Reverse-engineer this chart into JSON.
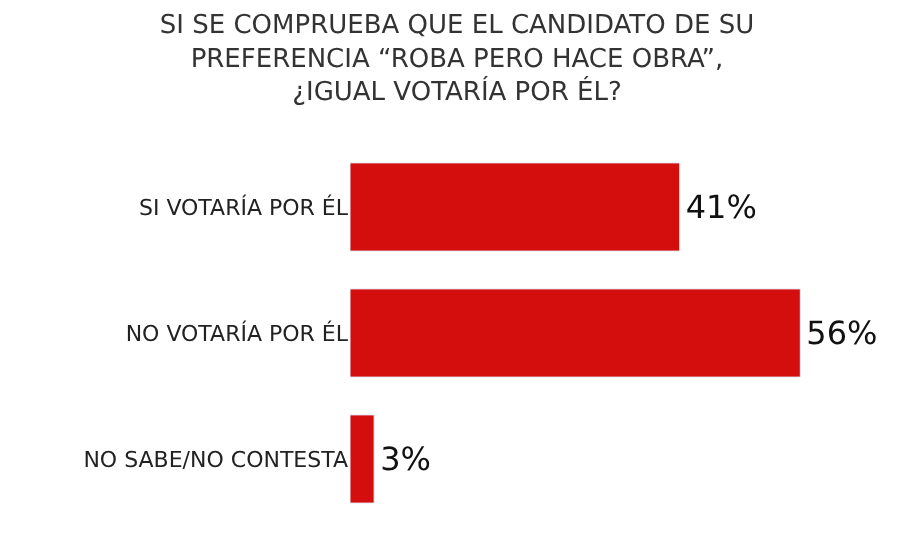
{
  "chart_data": {
    "type": "bar",
    "orientation": "horizontal",
    "title": "SI SE COMPRUEBA QUE EL CANDIDATO DE SU PREFERENCIA “ROBA PERO HACE OBRA”, ¿IGUAL VOTARÍA POR ÉL?",
    "categories": [
      "SI VOTARÍA POR ÉL",
      "NO VOTARÍA POR ÉL",
      "NO SABE/NO CONTESTA"
    ],
    "values": [
      41,
      56,
      3
    ],
    "value_labels": [
      "41%",
      "56%",
      "3%"
    ],
    "color": "#d40d0d",
    "tick_labels": "y"
  }
}
